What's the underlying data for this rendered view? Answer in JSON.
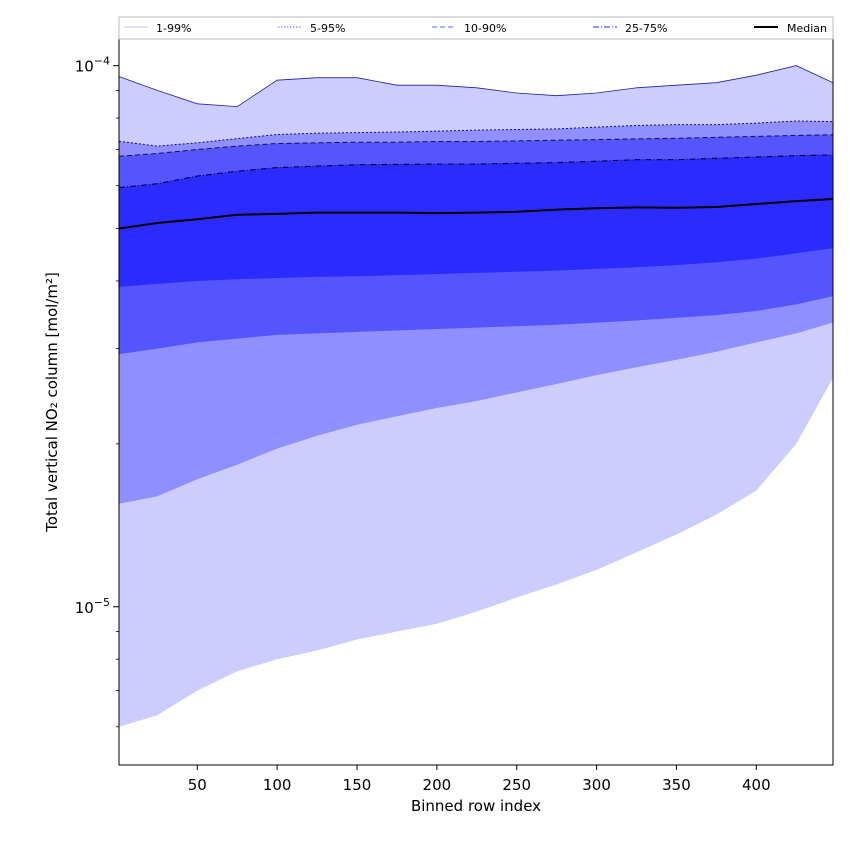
{
  "chart_data": {
    "type": "area",
    "title": "",
    "xlabel": "Binned row index",
    "ylabel": "Total vertical NO₂ column [mol/m²]",
    "xlim": [
      1,
      448
    ],
    "ylim": [
      5.1e-06,
      0.000112
    ],
    "yscale": "log",
    "grid": false,
    "legend_position": "top",
    "x_ticks": [
      50,
      100,
      150,
      200,
      250,
      300,
      350,
      400
    ],
    "y_ticks": [
      {
        "value": 0.0001,
        "base": "10",
        "exp": "−4"
      },
      {
        "value": 1e-05,
        "base": "10",
        "exp": "−5"
      }
    ],
    "legend": [
      {
        "label": "1-99%",
        "color": "#ccccff",
        "dash": "solid"
      },
      {
        "label": "5-95%",
        "color": "#8080ff",
        "dash": "dotted"
      },
      {
        "label": "10-90%",
        "color": "#8080ff",
        "dash": "dashed"
      },
      {
        "label": "25-75%",
        "color": "#5050ff",
        "dash": "dashdot"
      },
      {
        "label": "Median",
        "color": "#000000",
        "dash": "solid"
      }
    ],
    "x": [
      1,
      25,
      50,
      75,
      100,
      125,
      150,
      175,
      200,
      225,
      250,
      275,
      300,
      325,
      350,
      375,
      400,
      425,
      448
    ],
    "series": [
      {
        "name": "1-99%",
        "color": "#ccccff",
        "lower": [
          6e-06,
          6.3e-06,
          7e-06,
          7.6e-06,
          8e-06,
          8.3e-06,
          8.7e-06,
          9e-06,
          9.3e-06,
          9.8e-06,
          1.04e-05,
          1.1e-05,
          1.17e-05,
          1.26e-05,
          1.36e-05,
          1.48e-05,
          1.64e-05,
          2e-05,
          2.65e-05
        ],
        "upper": [
          9.55e-05,
          9e-05,
          8.5e-05,
          8.4e-05,
          9.4e-05,
          9.5e-05,
          9.5e-05,
          9.2e-05,
          9.2e-05,
          9.1e-05,
          8.9e-05,
          8.8e-05,
          8.9e-05,
          9.1e-05,
          9.2e-05,
          9.3e-05,
          9.6e-05,
          0.0001,
          9.3e-05
        ]
      },
      {
        "name": "5-95%",
        "color": "#8f8fff",
        "lower": [
          1.55e-05,
          1.6e-05,
          1.72e-05,
          1.83e-05,
          1.96e-05,
          2.07e-05,
          2.17e-05,
          2.25e-05,
          2.33e-05,
          2.4e-05,
          2.49e-05,
          2.58e-05,
          2.68e-05,
          2.77e-05,
          2.86e-05,
          2.96e-05,
          3.08e-05,
          3.2e-05,
          3.35e-05
        ]
      },
      {
        "name": "10-90%",
        "color": "#5555ff",
        "lower": [
          2.93e-05,
          3e-05,
          3.08e-05,
          3.13e-05,
          3.18e-05,
          3.2e-05,
          3.22e-05,
          3.24e-05,
          3.26e-05,
          3.28e-05,
          3.3e-05,
          3.32e-05,
          3.35e-05,
          3.38e-05,
          3.42e-05,
          3.46e-05,
          3.52e-05,
          3.62e-05,
          3.75e-05
        ]
      },
      {
        "name": "25-75%",
        "color": "#2b2bff",
        "lower": [
          3.9e-05,
          3.95e-05,
          4e-05,
          4.03e-05,
          4.05e-05,
          4.07e-05,
          4.08e-05,
          4.1e-05,
          4.12e-05,
          4.14e-05,
          4.16e-05,
          4.18e-05,
          4.21e-05,
          4.24e-05,
          4.28e-05,
          4.33e-05,
          4.4e-05,
          4.5e-05,
          4.6e-05
        ],
        "upper": [
          5.95e-05,
          6.05e-05,
          6.25e-05,
          6.38e-05,
          6.48e-05,
          6.52e-05,
          6.56e-05,
          6.57e-05,
          6.58e-05,
          6.58e-05,
          6.6e-05,
          6.62e-05,
          6.66e-05,
          6.7e-05,
          6.7e-05,
          6.74e-05,
          6.78e-05,
          6.82e-05,
          6.84e-05
        ]
      },
      {
        "name": "10-90% upper",
        "color": "#5555ff",
        "upper": [
          6.8e-05,
          6.88e-05,
          7e-05,
          7.1e-05,
          7.18e-05,
          7.2e-05,
          7.22e-05,
          7.22e-05,
          7.24e-05,
          7.24e-05,
          7.26e-05,
          7.28e-05,
          7.3e-05,
          7.32e-05,
          7.34e-05,
          7.37e-05,
          7.4e-05,
          7.43e-05,
          7.45e-05
        ]
      },
      {
        "name": "5-95% upper",
        "color": "#8f8fff",
        "upper": [
          7.25e-05,
          7.1e-05,
          7.2e-05,
          7.33e-05,
          7.46e-05,
          7.5e-05,
          7.52e-05,
          7.54e-05,
          7.57e-05,
          7.6e-05,
          7.62e-05,
          7.64e-05,
          7.7e-05,
          7.75e-05,
          7.78e-05,
          7.78e-05,
          7.83e-05,
          7.9e-05,
          7.88e-05
        ]
      },
      {
        "name": "Median",
        "color": "#000000",
        "values": [
          5e-05,
          5.12e-05,
          5.2e-05,
          5.3e-05,
          5.32e-05,
          5.35e-05,
          5.35e-05,
          5.35e-05,
          5.34e-05,
          5.35e-05,
          5.37e-05,
          5.42e-05,
          5.45e-05,
          5.47e-05,
          5.46e-05,
          5.48e-05,
          5.55e-05,
          5.62e-05,
          5.67e-05
        ]
      }
    ]
  }
}
